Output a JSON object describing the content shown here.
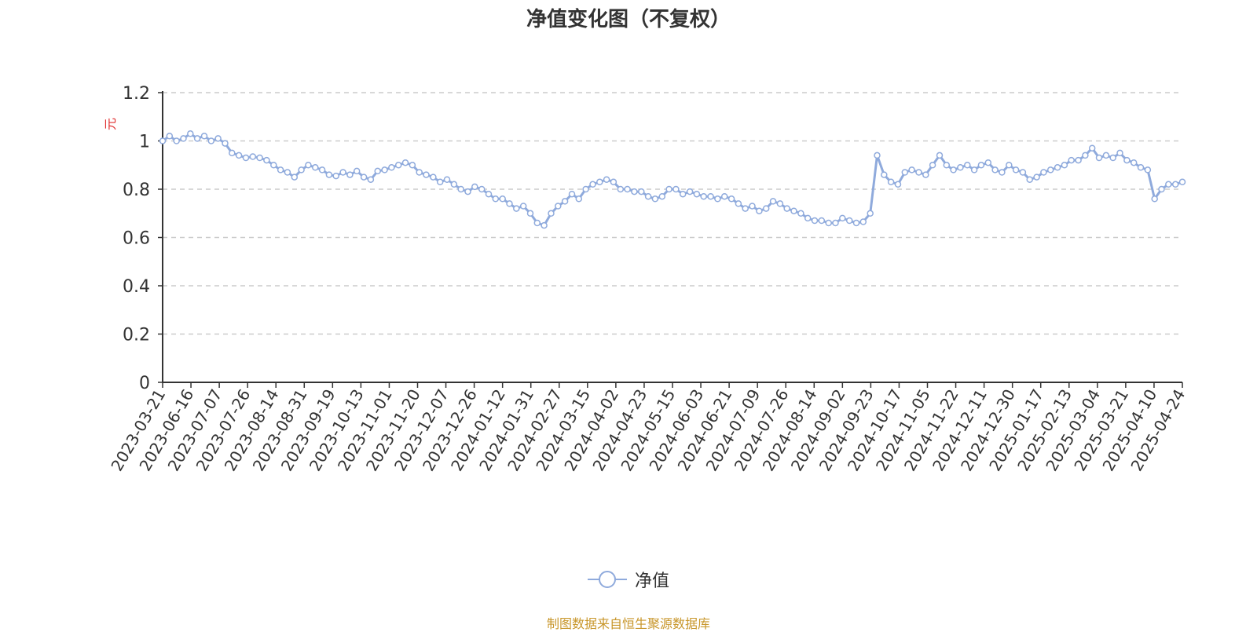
{
  "title": "净值变化图（不复权）",
  "source_note": "制图数据来自恒生聚源数据库",
  "colors": {
    "line": "#8faadc",
    "grid": "#cccccc",
    "axis": "#333333",
    "ylabel": "#e03030",
    "source": "#c8962a"
  },
  "chart_data": {
    "type": "line",
    "ylabel": "元",
    "ylim": [
      0,
      1.2
    ],
    "yticks": [
      0,
      0.2,
      0.4,
      0.6,
      0.8,
      1,
      1.2
    ],
    "ytick_labels": [
      "0",
      "0.2",
      "0.4",
      "0.6",
      "0.8",
      "1",
      "1.2"
    ],
    "grid": true,
    "legend_position": "bottom-center",
    "xtick_labels": [
      "2023-03-21",
      "2023-06-16",
      "2023-07-07",
      "2023-07-26",
      "2023-08-14",
      "2023-08-31",
      "2023-09-19",
      "2023-10-13",
      "2023-11-01",
      "2023-11-20",
      "2023-12-07",
      "2023-12-26",
      "2024-01-12",
      "2024-01-31",
      "2024-02-27",
      "2024-03-15",
      "2024-04-02",
      "2024-04-23",
      "2024-05-15",
      "2024-06-03",
      "2024-06-21",
      "2024-07-09",
      "2024-07-26",
      "2024-08-14",
      "2024-09-02",
      "2024-09-23",
      "2024-10-17",
      "2024-11-05",
      "2024-11-22",
      "2024-12-11",
      "2024-12-30",
      "2025-01-17",
      "2025-02-13",
      "2025-03-04",
      "2025-03-21",
      "2025-04-10",
      "2025-04-24"
    ],
    "series": [
      {
        "name": "净值",
        "values": [
          1.0,
          1.02,
          1.0,
          1.01,
          1.03,
          1.01,
          1.02,
          1.0,
          1.01,
          0.99,
          0.95,
          0.94,
          0.93,
          0.935,
          0.93,
          0.92,
          0.9,
          0.88,
          0.87,
          0.85,
          0.88,
          0.9,
          0.89,
          0.88,
          0.86,
          0.855,
          0.87,
          0.86,
          0.875,
          0.85,
          0.84,
          0.875,
          0.88,
          0.89,
          0.9,
          0.91,
          0.9,
          0.87,
          0.86,
          0.85,
          0.83,
          0.84,
          0.82,
          0.8,
          0.79,
          0.81,
          0.8,
          0.78,
          0.76,
          0.76,
          0.74,
          0.72,
          0.73,
          0.7,
          0.66,
          0.65,
          0.7,
          0.73,
          0.75,
          0.78,
          0.76,
          0.8,
          0.82,
          0.83,
          0.84,
          0.83,
          0.8,
          0.8,
          0.79,
          0.79,
          0.77,
          0.76,
          0.77,
          0.8,
          0.8,
          0.78,
          0.79,
          0.78,
          0.77,
          0.77,
          0.76,
          0.77,
          0.76,
          0.74,
          0.72,
          0.73,
          0.71,
          0.72,
          0.75,
          0.74,
          0.72,
          0.71,
          0.7,
          0.68,
          0.67,
          0.67,
          0.66,
          0.66,
          0.68,
          0.67,
          0.66,
          0.665,
          0.7,
          0.94,
          0.86,
          0.83,
          0.82,
          0.87,
          0.88,
          0.87,
          0.86,
          0.9,
          0.94,
          0.9,
          0.88,
          0.89,
          0.9,
          0.88,
          0.9,
          0.91,
          0.88,
          0.87,
          0.9,
          0.88,
          0.87,
          0.84,
          0.85,
          0.87,
          0.88,
          0.89,
          0.9,
          0.92,
          0.92,
          0.94,
          0.97,
          0.93,
          0.94,
          0.93,
          0.95,
          0.92,
          0.91,
          0.89,
          0.88,
          0.76,
          0.8,
          0.82,
          0.82,
          0.83
        ]
      }
    ]
  }
}
